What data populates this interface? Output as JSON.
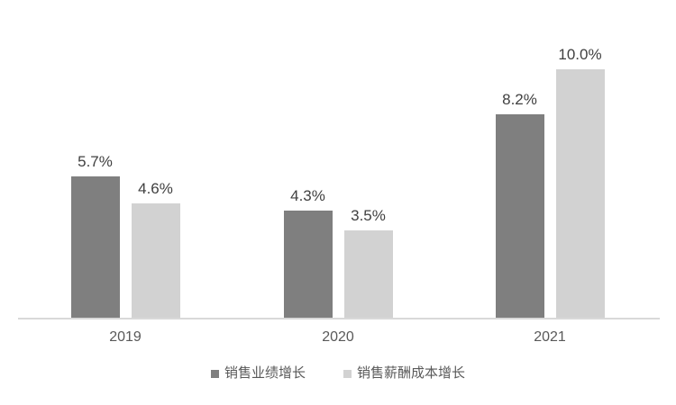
{
  "chart_data": {
    "type": "bar",
    "title": "",
    "xlabel": "",
    "ylabel": "",
    "categories": [
      "2019",
      "2020",
      "2021"
    ],
    "series": [
      {
        "name": "销售业绩增长",
        "color": "#7f7f7f",
        "values": [
          5.7,
          4.3,
          8.2
        ]
      },
      {
        "name": "销售薪酬成本增长",
        "color": "#d2d2d2",
        "values": [
          4.6,
          3.5,
          10.0
        ]
      }
    ],
    "value_label_suffix": "%",
    "data_labels": true,
    "ylim": [
      0,
      11
    ],
    "grid": false,
    "y_axis_visible": false,
    "legend_position": "bottom"
  },
  "styles": {
    "background": "#ffffff",
    "axis_line_color": "#d9d9d9",
    "value_label_color": "#404040",
    "category_label_color": "#595959",
    "legend_text_color": "#595959"
  }
}
